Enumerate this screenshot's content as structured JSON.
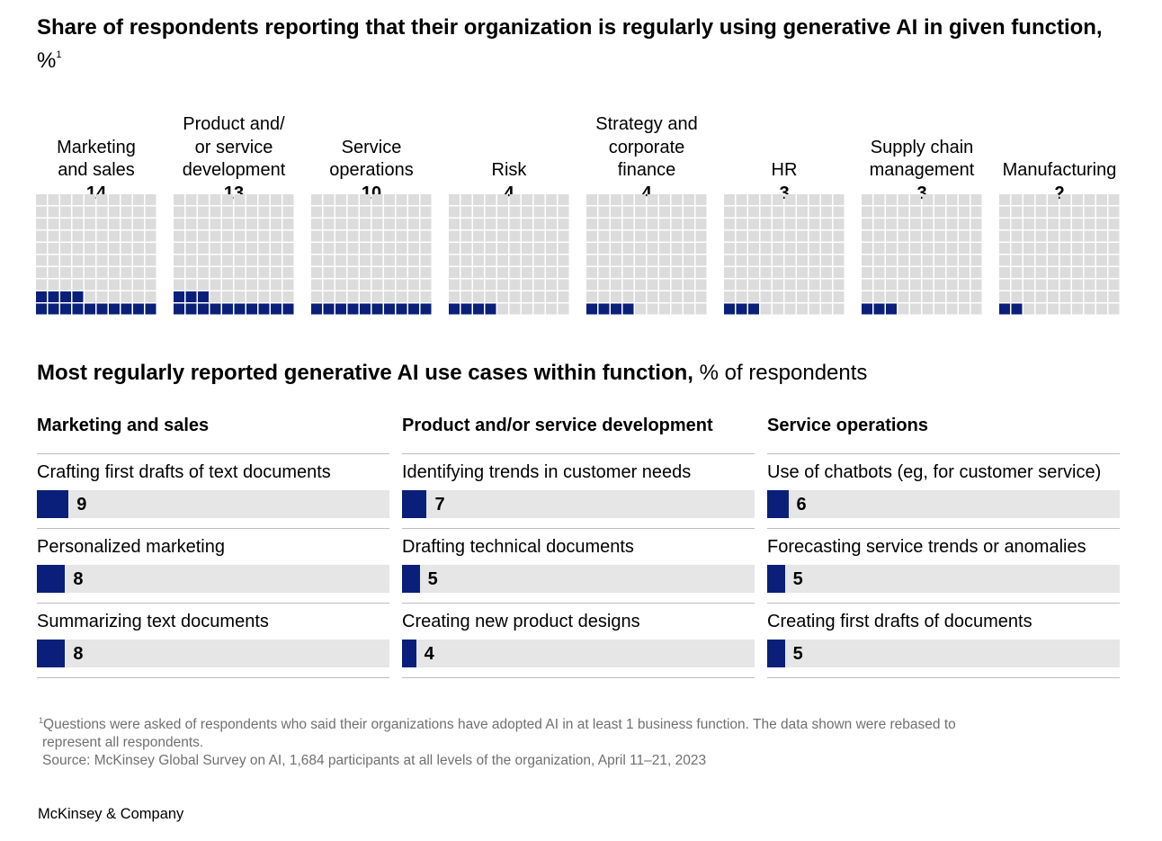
{
  "title": {
    "text": "Share of respondents reporting that their organization is regularly using generative AI in given function,",
    "unit": "%",
    "footnote_mark": "1"
  },
  "chart_data": [
    {
      "type": "waffle",
      "title": "Share of respondents reporting that their organization is regularly using generative AI in given function, %",
      "grid": "10x10",
      "categories": [
        "Marketing and sales",
        "Product and/or service development",
        "Service operations",
        "Risk",
        "Strategy and corporate finance",
        "HR",
        "Supply chain management",
        "Manufacturing"
      ],
      "display_labels": [
        "Marketing\nand sales",
        "Product and/\nor service\ndevelopment",
        "Service\noperations",
        "Risk",
        "Strategy and\ncorporate\nfinance",
        "HR",
        "Supply chain\nmanagement",
        "Manufacturing"
      ],
      "values": [
        14,
        13,
        10,
        4,
        4,
        3,
        3,
        2
      ],
      "colors": {
        "filled": "#0a1f7a",
        "empty": "#dcdcdc"
      }
    },
    {
      "type": "bar",
      "orientation": "horizontal",
      "title": "Most regularly reported generative AI use cases within function, % of respondents",
      "xlim": [
        0,
        100
      ],
      "panels": [
        {
          "function": "Marketing and sales",
          "categories": [
            "Crafting first drafts of text documents",
            "Personalized marketing",
            "Summarizing text documents"
          ],
          "values": [
            9,
            8,
            8
          ]
        },
        {
          "function": "Product and/or service development",
          "categories": [
            "Identifying trends in customer needs",
            "Drafting technical documents",
            "Creating new product designs"
          ],
          "values": [
            7,
            5,
            4
          ]
        },
        {
          "function": "Service operations",
          "categories": [
            "Use of chatbots (eg, for customer service)",
            "Forecasting service trends or anomalies",
            "Creating first drafts of documents"
          ],
          "values": [
            6,
            5,
            5
          ]
        }
      ],
      "colors": {
        "bar": "#0a1f7a",
        "track": "#e6e6e6"
      }
    }
  ],
  "subtitle": {
    "text": "Most regularly reported generative AI use cases within function,",
    "unit": "% of respondents"
  },
  "footnote": {
    "mark": "1",
    "line1": "Questions were asked of respondents who said their organizations have adopted AI in at least 1 business function. The data shown were rebased to",
    "line2": "represent all respondents.",
    "source": "Source: McKinsey Global Survey on AI, 1,684 participants at all levels of the organization, April 11–21, 2023"
  },
  "brand": "McKinsey & Company"
}
